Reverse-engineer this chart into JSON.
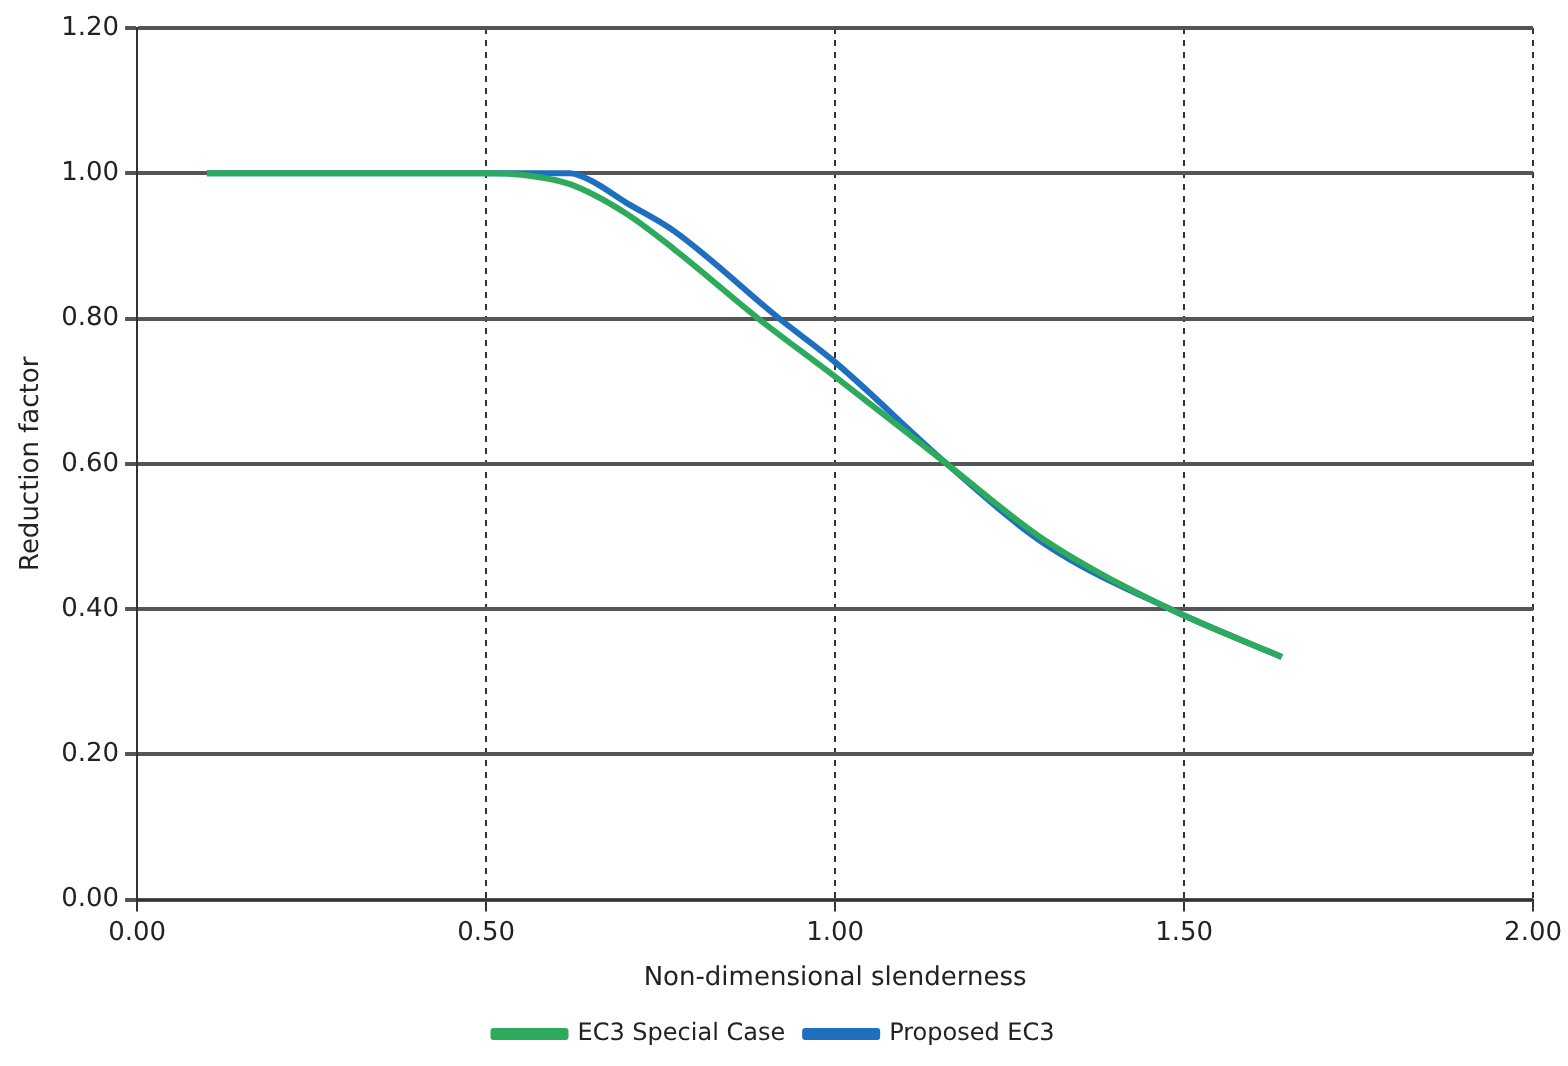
{
  "chart_data": {
    "type": "line",
    "xlabel": "Non-dimensional slenderness",
    "ylabel": "Reduction factor",
    "xlim": [
      0,
      2
    ],
    "xticks": [
      {
        "value": 0,
        "label": "0.00"
      },
      {
        "value": 0.5,
        "label": "0.50"
      },
      {
        "value": 1,
        "label": "1.00"
      },
      {
        "value": 1.5,
        "label": "1.50"
      },
      {
        "value": 2,
        "label": "2.00"
      }
    ],
    "ylim": [
      0,
      1.2
    ],
    "yticks": [
      {
        "value": 0,
        "label": "0.00"
      },
      {
        "value": 0.2,
        "label": "0.20"
      },
      {
        "value": 0.4,
        "label": "0.40"
      },
      {
        "value": 0.6,
        "label": "0.60"
      },
      {
        "value": 0.8,
        "label": "0.80"
      },
      {
        "value": 1,
        "label": "1.00"
      },
      {
        "value": 1.2,
        "label": "1.20"
      }
    ],
    "grid": true,
    "legend": "bottom",
    "marker": "none",
    "line_style": "solid",
    "series": [
      {
        "name": "EC3 Special Case",
        "color": "#2eaa5c",
        "x": [
          0.1,
          0.3,
          0.5,
          0.55,
          0.62,
          0.7,
          0.77,
          0.89,
          1.0,
          1.16,
          1.3,
          1.48,
          1.64
        ],
        "values": [
          1.0,
          1.0,
          1.0,
          0.998,
          0.985,
          0.945,
          0.895,
          0.8,
          0.72,
          0.6,
          0.495,
          0.4,
          0.334
        ]
      },
      {
        "name": "Proposed EC3",
        "color": "#1f6fc1",
        "x": [
          0.1,
          0.3,
          0.5,
          0.62,
          0.65,
          0.7,
          0.77,
          0.92,
          1.0,
          1.16,
          1.3,
          1.48,
          1.64
        ],
        "values": [
          1.0,
          1.0,
          1.0,
          1.0,
          0.99,
          0.96,
          0.92,
          0.8,
          0.74,
          0.6,
          0.49,
          0.4,
          0.334
        ]
      }
    ]
  }
}
